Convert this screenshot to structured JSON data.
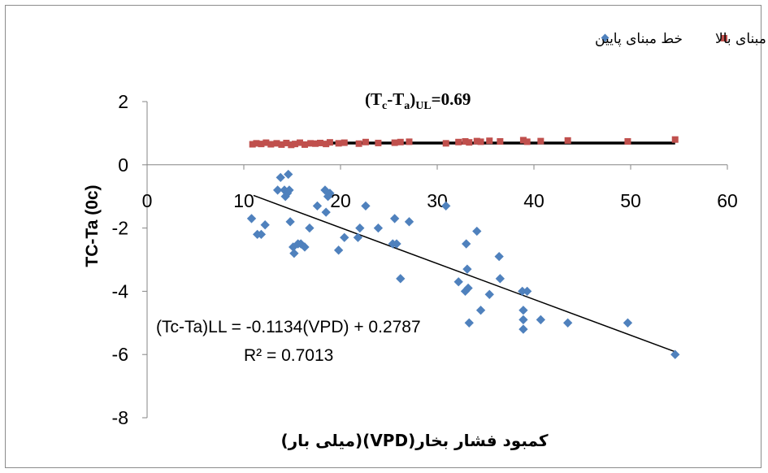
{
  "chart_data": {
    "type": "scatter",
    "xlabel": "کمبود فشار بخار(VPD)(میلی بار)",
    "ylabel": "TC-Ta (0c)",
    "xlim": [
      0,
      60
    ],
    "ylim": [
      -8,
      2
    ],
    "x_ticks": [
      "0",
      "10",
      "20",
      "30",
      "40",
      "50",
      "60"
    ],
    "y_ticks": [
      "2",
      "0",
      "-2",
      "-4",
      "-6",
      "-8"
    ],
    "grid": false,
    "legend_position": "top-right",
    "annotation": {
      "main": "(T",
      "sub1": "c",
      "dash": "-T",
      "sub2": "a",
      "paren": ")",
      "sub3": "UL",
      "value": "=0.69"
    },
    "equation": "(Tc-Ta)LL = -0.1134(VPD) + 0.2787",
    "r2": "R² = 0.7013",
    "series": [
      {
        "name": "خط مبنای پایین",
        "color": "#4f81bd",
        "marker": "diamond",
        "points": [
          [
            10.8,
            -1.7
          ],
          [
            11.4,
            -2.2
          ],
          [
            11.8,
            -2.2
          ],
          [
            12.2,
            -1.9
          ],
          [
            13.5,
            -0.8
          ],
          [
            13.8,
            -0.4
          ],
          [
            14.2,
            -0.8
          ],
          [
            14.3,
            -1.0
          ],
          [
            14.5,
            -0.9
          ],
          [
            14.6,
            -0.3
          ],
          [
            14.7,
            -0.8
          ],
          [
            14.8,
            -1.8
          ],
          [
            15.1,
            -2.6
          ],
          [
            15.2,
            -2.8
          ],
          [
            15.6,
            -2.5
          ],
          [
            15.9,
            -2.5
          ],
          [
            16.3,
            -2.6
          ],
          [
            16.8,
            -2.0
          ],
          [
            17.6,
            -1.3
          ],
          [
            18.4,
            -0.8
          ],
          [
            18.5,
            -1.5
          ],
          [
            18.7,
            -1.0
          ],
          [
            18.9,
            -0.9
          ],
          [
            19.8,
            -2.7
          ],
          [
            20.4,
            -2.3
          ],
          [
            21.8,
            -2.3
          ],
          [
            22.0,
            -2.0
          ],
          [
            22.6,
            -1.3
          ],
          [
            23.9,
            -2.0
          ],
          [
            25.4,
            -2.5
          ],
          [
            25.6,
            -1.7
          ],
          [
            25.8,
            -2.5
          ],
          [
            26.2,
            -3.6
          ],
          [
            27.1,
            -1.8
          ],
          [
            30.9,
            -1.3
          ],
          [
            32.2,
            -3.7
          ],
          [
            32.9,
            -4.0
          ],
          [
            33.0,
            -2.5
          ],
          [
            33.1,
            -3.3
          ],
          [
            33.2,
            -3.9
          ],
          [
            33.3,
            -5.0
          ],
          [
            34.1,
            -2.1
          ],
          [
            34.5,
            -4.6
          ],
          [
            35.4,
            -4.1
          ],
          [
            36.4,
            -2.9
          ],
          [
            36.5,
            -3.6
          ],
          [
            38.8,
            -4.0
          ],
          [
            38.9,
            -4.6
          ],
          [
            38.9,
            -4.9
          ],
          [
            38.9,
            -5.2
          ],
          [
            39.3,
            -4.0
          ],
          [
            40.7,
            -4.9
          ],
          [
            43.5,
            -5.0
          ],
          [
            49.7,
            -5.0
          ],
          [
            54.6,
            -6.0
          ]
        ],
        "trendline": {
          "slope": -0.1134,
          "intercept": 0.2787,
          "x_range": [
            11,
            54.6
          ]
        }
      },
      {
        "name": "خط مبنای بالا",
        "color": "#c0504d",
        "marker": "square",
        "points": [
          [
            10.9,
            0.65
          ],
          [
            11.3,
            0.68
          ],
          [
            11.8,
            0.66
          ],
          [
            12.3,
            0.7
          ],
          [
            12.8,
            0.65
          ],
          [
            13.4,
            0.68
          ],
          [
            13.9,
            0.64
          ],
          [
            14.4,
            0.69
          ],
          [
            14.9,
            0.63
          ],
          [
            15.3,
            0.66
          ],
          [
            15.8,
            0.7
          ],
          [
            16.3,
            0.64
          ],
          [
            16.9,
            0.68
          ],
          [
            17.4,
            0.67
          ],
          [
            17.9,
            0.69
          ],
          [
            18.5,
            0.66
          ],
          [
            18.9,
            0.71
          ],
          [
            19.8,
            0.68
          ],
          [
            20.4,
            0.7
          ],
          [
            21.9,
            0.67
          ],
          [
            22.6,
            0.72
          ],
          [
            23.9,
            0.69
          ],
          [
            25.6,
            0.7
          ],
          [
            26.2,
            0.72
          ],
          [
            27.1,
            0.73
          ],
          [
            30.9,
            0.68
          ],
          [
            32.2,
            0.72
          ],
          [
            32.9,
            0.74
          ],
          [
            33.3,
            0.71
          ],
          [
            34.1,
            0.75
          ],
          [
            34.5,
            0.73
          ],
          [
            35.4,
            0.76
          ],
          [
            36.5,
            0.74
          ],
          [
            38.9,
            0.78
          ],
          [
            39.3,
            0.73
          ],
          [
            40.7,
            0.75
          ],
          [
            43.5,
            0.77
          ],
          [
            49.7,
            0.74
          ],
          [
            54.6,
            0.8
          ]
        ],
        "trendline": {
          "slope": 0,
          "intercept": 0.69,
          "x_range": [
            11,
            54.6
          ]
        }
      }
    ]
  }
}
